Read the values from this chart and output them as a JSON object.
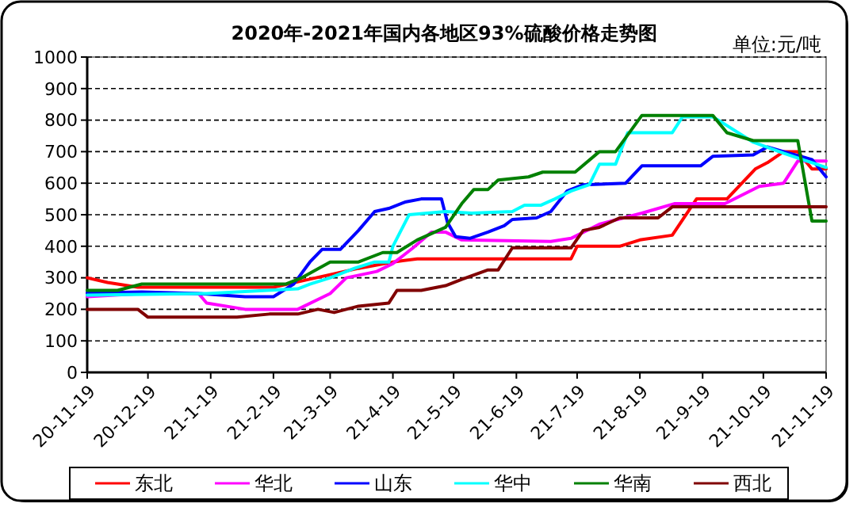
{
  "chart_data": {
    "type": "line",
    "title": "2020年-2021年国内各地区93%硫酸价格走势图",
    "annotations": [
      "单位:元/吨"
    ],
    "xlim": [
      "2020-11-19",
      "2021-11-19"
    ],
    "xticks": [
      {
        "value": "2020-11-19",
        "label": "20-11-19"
      },
      {
        "value": "2020-12-19",
        "label": "20-12-19"
      },
      {
        "value": "2021-01-19",
        "label": "21-1-19"
      },
      {
        "value": "2021-02-19",
        "label": "21-2-19"
      },
      {
        "value": "2021-03-19",
        "label": "21-3-19"
      },
      {
        "value": "2021-04-19",
        "label": "21-4-19"
      },
      {
        "value": "2021-05-19",
        "label": "21-5-19"
      },
      {
        "value": "2021-06-19",
        "label": "21-6-19"
      },
      {
        "value": "2021-07-19",
        "label": "21-7-19"
      },
      {
        "value": "2021-08-19",
        "label": "21-8-19"
      },
      {
        "value": "2021-09-19",
        "label": "21-9-19"
      },
      {
        "value": "2021-10-19",
        "label": "21-10-19"
      },
      {
        "value": "2021-11-19",
        "label": "21-11-19"
      }
    ],
    "ylim": [
      0,
      1000
    ],
    "yticks": [
      0,
      100,
      200,
      300,
      400,
      500,
      600,
      700,
      800,
      900,
      1000
    ],
    "grid": "y",
    "legend": "bottom",
    "marker": "none",
    "line_style": "solid",
    "series": [
      {
        "name": "东北",
        "color": "#ff0000",
        "x": [
          "2020-11-19",
          "2020-11-29",
          "2020-12-14",
          "2021-02-19",
          "2021-03-05",
          "2021-03-19",
          "2021-04-02",
          "2021-04-19",
          "2021-05-01",
          "2021-07-16",
          "2021-07-19",
          "2021-08-09",
          "2021-08-19",
          "2021-09-04",
          "2021-09-16",
          "2021-10-01",
          "2021-10-15",
          "2021-10-21",
          "2021-10-29",
          "2021-11-05",
          "2021-11-12",
          "2021-11-19"
        ],
        "values": [
          300,
          285,
          270,
          270,
          290,
          310,
          330,
          350,
          360,
          360,
          400,
          400,
          420,
          435,
          550,
          550,
          645,
          665,
          700,
          700,
          645,
          645
        ]
      },
      {
        "name": "华北",
        "color": "#ff00ff",
        "x": [
          "2020-11-19",
          "2020-12-16",
          "2021-01-13",
          "2021-01-17",
          "2021-02-05",
          "2021-03-03",
          "2021-03-19",
          "2021-03-27",
          "2021-04-11",
          "2021-04-19",
          "2021-04-29",
          "2021-05-08",
          "2021-05-15",
          "2021-05-23",
          "2021-07-06",
          "2021-07-16",
          "2021-07-30",
          "2021-08-20",
          "2021-09-05",
          "2021-09-30",
          "2021-10-17",
          "2021-10-29",
          "2021-11-05",
          "2021-11-19"
        ],
        "values": [
          240,
          250,
          250,
          220,
          200,
          200,
          250,
          300,
          320,
          345,
          395,
          445,
          445,
          420,
          415,
          425,
          470,
          505,
          535,
          535,
          590,
          600,
          670,
          670
        ]
      },
      {
        "name": "山东",
        "color": "#0000ff",
        "x": [
          "2020-11-19",
          "2020-12-16",
          "2021-01-13",
          "2021-02-05",
          "2021-02-19",
          "2021-03-01",
          "2021-03-09",
          "2021-03-15",
          "2021-03-24",
          "2021-04-02",
          "2021-04-10",
          "2021-04-17",
          "2021-04-25",
          "2021-05-03",
          "2021-05-13",
          "2021-05-16",
          "2021-05-20",
          "2021-05-27",
          "2021-06-05",
          "2021-06-13",
          "2021-06-17",
          "2021-06-29",
          "2021-07-06",
          "2021-07-14",
          "2021-07-22",
          "2021-08-12",
          "2021-08-20",
          "2021-09-18",
          "2021-09-24",
          "2021-10-14",
          "2021-10-21",
          "2021-10-29",
          "2021-11-12",
          "2021-11-19"
        ],
        "values": [
          252,
          255,
          250,
          240,
          240,
          280,
          350,
          390,
          390,
          450,
          510,
          520,
          540,
          550,
          550,
          475,
          430,
          425,
          445,
          465,
          485,
          490,
          510,
          575,
          595,
          600,
          655,
          655,
          685,
          690,
          715,
          700,
          675,
          620
        ]
      },
      {
        "name": "华中",
        "color": "#00ffff",
        "x": [
          "2020-11-19",
          "2021-01-17",
          "2021-03-03",
          "2021-03-09",
          "2021-03-19",
          "2021-03-31",
          "2021-04-10",
          "2021-04-17",
          "2021-04-19",
          "2021-04-27",
          "2021-05-15",
          "2021-05-28",
          "2021-06-17",
          "2021-06-23",
          "2021-07-01",
          "2021-07-08",
          "2021-07-16",
          "2021-07-25",
          "2021-07-30",
          "2021-08-07",
          "2021-08-13",
          "2021-09-04",
          "2021-09-09",
          "2021-09-24",
          "2021-09-28",
          "2021-10-14",
          "2021-10-29",
          "2021-11-19"
        ],
        "values": [
          245,
          250,
          265,
          280,
          300,
          330,
          350,
          350,
          400,
          500,
          510,
          505,
          510,
          530,
          530,
          550,
          575,
          595,
          660,
          660,
          760,
          760,
          810,
          810,
          795,
          730,
          695,
          650
        ]
      },
      {
        "name": "华南",
        "color": "#008000",
        "x": [
          "2020-11-19",
          "2020-12-04",
          "2020-12-16",
          "2021-02-25",
          "2021-03-05",
          "2021-03-19",
          "2021-04-02",
          "2021-04-14",
          "2021-04-21",
          "2021-05-01",
          "2021-05-15",
          "2021-05-23",
          "2021-05-29",
          "2021-06-05",
          "2021-06-10",
          "2021-06-25",
          "2021-07-02",
          "2021-07-18",
          "2021-07-30",
          "2021-08-07",
          "2021-08-20",
          "2021-09-24",
          "2021-10-01",
          "2021-10-14",
          "2021-11-05",
          "2021-11-12",
          "2021-11-19"
        ],
        "values": [
          260,
          260,
          280,
          280,
          300,
          350,
          350,
          380,
          380,
          420,
          460,
          535,
          580,
          580,
          610,
          620,
          635,
          635,
          700,
          700,
          815,
          815,
          760,
          735,
          735,
          480,
          480
        ]
      },
      {
        "name": "西北",
        "color": "#800000",
        "x": [
          "2020-11-19",
          "2020-12-14",
          "2020-12-19",
          "2021-02-01",
          "2021-02-17",
          "2021-03-03",
          "2021-03-13",
          "2021-03-21",
          "2021-04-02",
          "2021-04-17",
          "2021-04-21",
          "2021-05-03",
          "2021-05-15",
          "2021-05-23",
          "2021-06-05",
          "2021-06-10",
          "2021-06-17",
          "2021-07-16",
          "2021-07-22",
          "2021-07-30",
          "2021-08-09",
          "2021-08-28",
          "2021-09-04",
          "2021-11-19"
        ],
        "values": [
          200,
          200,
          175,
          175,
          185,
          185,
          200,
          190,
          210,
          220,
          260,
          260,
          275,
          295,
          325,
          325,
          395,
          395,
          450,
          460,
          490,
          490,
          525,
          525
        ]
      }
    ]
  }
}
